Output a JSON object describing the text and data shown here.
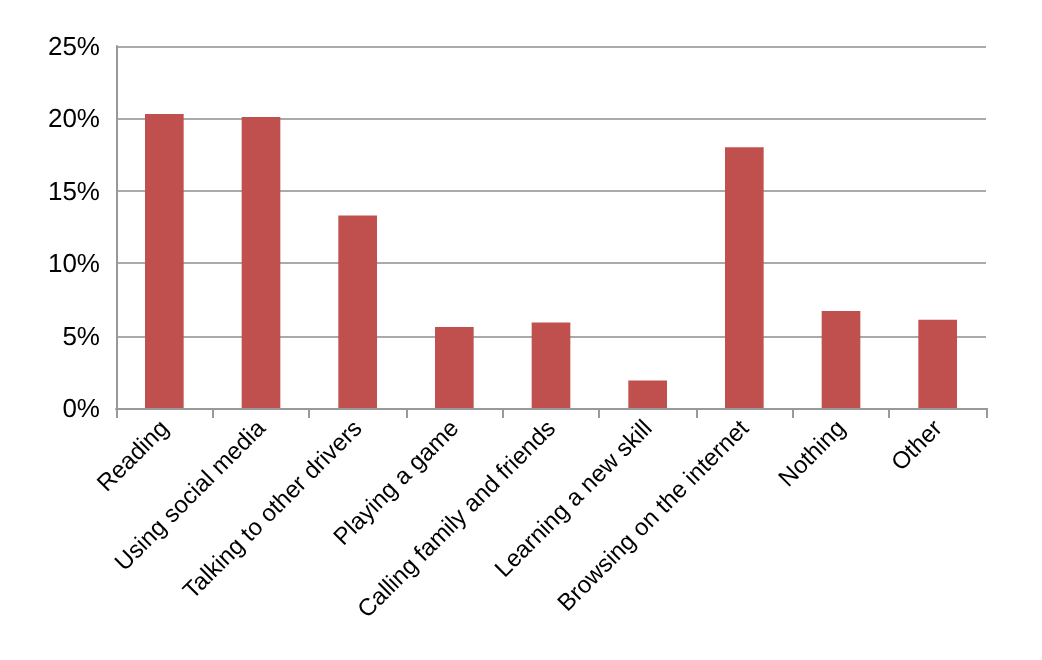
{
  "chart_data": {
    "type": "bar",
    "categories": [
      "Reading",
      "Using social media",
      "Talking to other drivers",
      "Playing a game",
      "Calling family and friends",
      "Learning a new skill",
      "Browsing on the internet",
      "Nothing",
      "Other"
    ],
    "values": [
      20.3,
      20.1,
      13.3,
      5.6,
      5.9,
      1.9,
      18.0,
      6.7,
      6.1
    ],
    "color": "#c0504d",
    "ylim": [
      0,
      25
    ],
    "yticks": [
      {
        "value": 0,
        "label": "0%"
      },
      {
        "value": 5,
        "label": "5%"
      },
      {
        "value": 10,
        "label": "10%"
      },
      {
        "value": 15,
        "label": "15%"
      },
      {
        "value": 20,
        "label": "20%"
      },
      {
        "value": 25,
        "label": "25%"
      }
    ],
    "grid": "y"
  }
}
